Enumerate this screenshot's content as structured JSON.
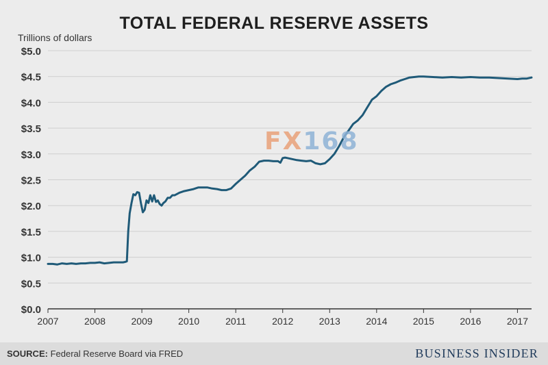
{
  "title": "TOTAL FEDERAL RESERVE ASSETS",
  "ylabel": "Trillions of dollars",
  "footer": {
    "source_label": "SOURCE:",
    "source_text": " Federal Reserve Board via FRED",
    "brand": "BUSINESS INSIDER"
  },
  "watermark": {
    "part_a": "FX",
    "part_b": "168"
  },
  "colors": {
    "line": "#1f5a78",
    "grid": "#cfcfcf",
    "background": "#ececec"
  },
  "chart_data": {
    "type": "line",
    "title": "TOTAL FEDERAL RESERVE ASSETS",
    "xlabel": "",
    "ylabel": "Trillions of dollars",
    "xlim": [
      2007,
      2017.3
    ],
    "ylim": [
      0,
      5
    ],
    "grid": true,
    "legend": "none",
    "x_ticks": [
      "2007",
      "2008",
      "2009",
      "2010",
      "2011",
      "2012",
      "2013",
      "2014",
      "2015",
      "2016",
      "2017"
    ],
    "y_ticks": [
      "$0.0",
      "$0.5",
      "$1.0",
      "$1.5",
      "$2.0",
      "$2.5",
      "$3.0",
      "$3.5",
      "$4.0",
      "$4.5",
      "$5.0"
    ],
    "series": [
      {
        "x": [
          2007.0,
          2007.1,
          2007.2,
          2007.3,
          2007.4,
          2007.5,
          2007.6,
          2007.7,
          2007.8,
          2007.9,
          2008.0,
          2008.1,
          2008.2,
          2008.3,
          2008.4,
          2008.5,
          2008.6,
          2008.65,
          2008.68,
          2008.71,
          2008.74,
          2008.78,
          2008.82,
          2008.86,
          2008.9,
          2008.94,
          2008.98,
          2009.02,
          2009.06,
          2009.1,
          2009.14,
          2009.18,
          2009.22,
          2009.26,
          2009.3,
          2009.34,
          2009.38,
          2009.42,
          2009.46,
          2009.5,
          2009.55,
          2009.6,
          2009.65,
          2009.7,
          2009.8,
          2009.9,
          2010.0,
          2010.1,
          2010.2,
          2010.3,
          2010.4,
          2010.5,
          2010.6,
          2010.7,
          2010.8,
          2010.9,
          2011.0,
          2011.1,
          2011.2,
          2011.3,
          2011.4,
          2011.5,
          2011.6,
          2011.7,
          2011.8,
          2011.9,
          2011.95,
          2012.0,
          2012.05,
          2012.1,
          2012.2,
          2012.3,
          2012.4,
          2012.5,
          2012.6,
          2012.7,
          2012.8,
          2012.9,
          2013.0,
          2013.1,
          2013.2,
          2013.3,
          2013.4,
          2013.5,
          2013.6,
          2013.7,
          2013.8,
          2013.9,
          2014.0,
          2014.1,
          2014.2,
          2014.3,
          2014.4,
          2014.5,
          2014.6,
          2014.7,
          2014.8,
          2014.9,
          2015.0,
          2015.2,
          2015.4,
          2015.6,
          2015.8,
          2016.0,
          2016.2,
          2016.4,
          2016.6,
          2016.8,
          2017.0,
          2017.1,
          2017.2,
          2017.3
        ],
        "y": [
          0.87,
          0.87,
          0.86,
          0.88,
          0.87,
          0.88,
          0.87,
          0.88,
          0.88,
          0.89,
          0.89,
          0.9,
          0.88,
          0.89,
          0.9,
          0.9,
          0.9,
          0.91,
          0.92,
          1.5,
          1.85,
          2.05,
          2.22,
          2.2,
          2.26,
          2.25,
          2.05,
          1.87,
          1.92,
          2.1,
          2.05,
          2.2,
          2.08,
          2.2,
          2.07,
          2.1,
          2.03,
          2.0,
          2.05,
          2.08,
          2.15,
          2.15,
          2.2,
          2.2,
          2.25,
          2.28,
          2.3,
          2.32,
          2.35,
          2.35,
          2.35,
          2.33,
          2.32,
          2.3,
          2.3,
          2.33,
          2.42,
          2.5,
          2.58,
          2.68,
          2.75,
          2.85,
          2.87,
          2.87,
          2.86,
          2.86,
          2.83,
          2.92,
          2.93,
          2.92,
          2.9,
          2.88,
          2.87,
          2.86,
          2.87,
          2.82,
          2.8,
          2.82,
          2.9,
          3.0,
          3.15,
          3.32,
          3.45,
          3.58,
          3.65,
          3.75,
          3.9,
          4.05,
          4.12,
          4.22,
          4.3,
          4.35,
          4.38,
          4.42,
          4.45,
          4.48,
          4.49,
          4.5,
          4.5,
          4.49,
          4.48,
          4.49,
          4.48,
          4.49,
          4.48,
          4.48,
          4.47,
          4.46,
          4.45,
          4.46,
          4.46,
          4.48
        ]
      }
    ]
  }
}
